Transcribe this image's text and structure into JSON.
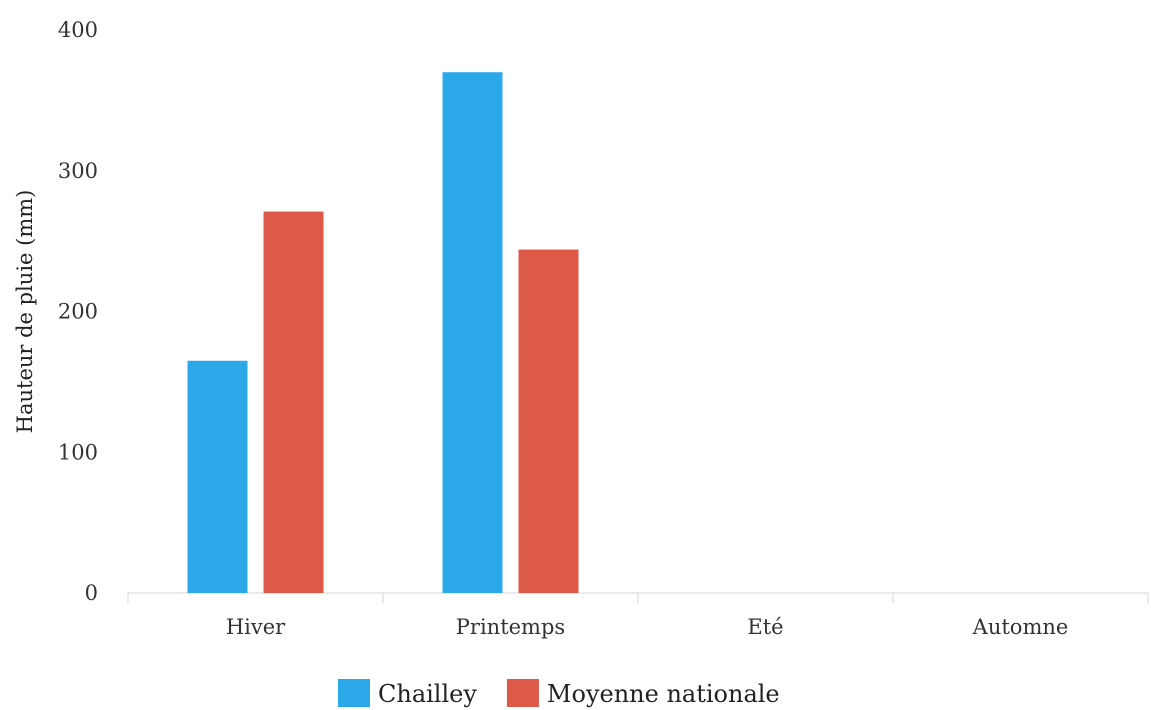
{
  "chart_data": {
    "type": "bar",
    "title": "",
    "xlabel": "",
    "ylabel": "Hauteur de pluie (mm)",
    "ylim": [
      0,
      400
    ],
    "yticks": [
      0,
      100,
      200,
      300,
      400
    ],
    "categories": [
      "Hiver",
      "Printemps",
      "Eté",
      "Automne"
    ],
    "series": [
      {
        "name": "Chailley",
        "color": "#2aa8e8",
        "values": [
          165,
          370,
          null,
          null
        ]
      },
      {
        "name": "Moyenne nationale",
        "color": "#dd5a48",
        "values": [
          271,
          244,
          null,
          null
        ]
      }
    ],
    "grid": false,
    "legend": "bottom-center"
  }
}
